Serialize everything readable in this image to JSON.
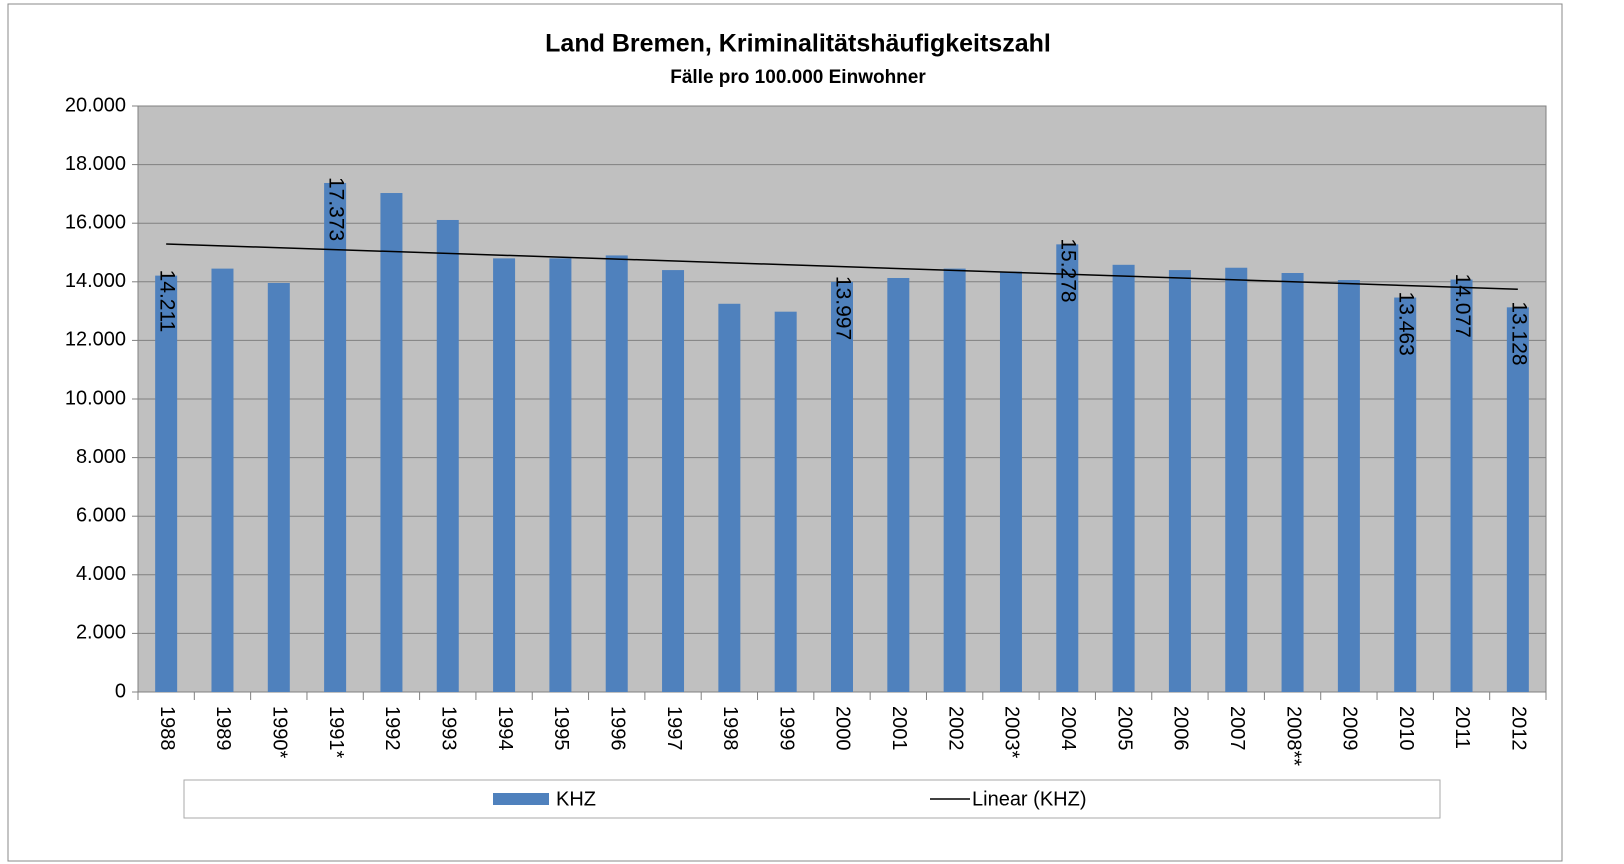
{
  "chart_data": {
    "type": "bar",
    "title": "Land Bremen, Kriminalitätshäufigkeitszahl",
    "subtitle": "Fälle pro 100.000 Einwohner",
    "categories": [
      "1988",
      "1989",
      "1990*",
      "1991*",
      "1992",
      "1993",
      "1994",
      "1995",
      "1996",
      "1997",
      "1998",
      "1999",
      "2000",
      "2001",
      "2002",
      "2003*",
      "2004",
      "2005",
      "2006",
      "2007",
      "2008**",
      "2009",
      "2010",
      "2011",
      "2012"
    ],
    "series": [
      {
        "name": "KHZ",
        "color": "#4f81bd",
        "values": [
          14211,
          14450,
          13960,
          17373,
          17030,
          16110,
          14800,
          14800,
          14900,
          14400,
          13250,
          12980,
          13997,
          14130,
          14450,
          14350,
          15278,
          14580,
          14400,
          14480,
          14300,
          14060,
          13463,
          14077,
          13128
        ],
        "value_labels": [
          "14.211",
          null,
          null,
          "17.373",
          null,
          null,
          null,
          null,
          null,
          null,
          null,
          null,
          "13.997",
          null,
          null,
          null,
          "15.278",
          null,
          null,
          null,
          null,
          null,
          "13.463",
          "14.077",
          "13.128"
        ]
      }
    ],
    "trendline": {
      "name": "Linear (KHZ)",
      "color": "#000000"
    },
    "ylim": [
      0,
      20000
    ],
    "yticks": [
      0,
      {
        "value": 2000,
        "label": "2.000"
      },
      {
        "value": 4000,
        "label": "4.000"
      },
      {
        "value": 6000,
        "label": "6.000"
      },
      {
        "value": 8000,
        "label": "8.000"
      },
      {
        "value": 10000,
        "label": "10.000"
      },
      {
        "value": 12000,
        "label": "12.000"
      },
      {
        "value": 14000,
        "label": "14.000"
      },
      {
        "value": 16000,
        "label": "16.000"
      },
      {
        "value": 18000,
        "label": "18.000"
      },
      {
        "value": 20000,
        "label": "20.000"
      }
    ],
    "grid": true,
    "plot_background": "#c0c0c0",
    "legend": "bottom"
  }
}
